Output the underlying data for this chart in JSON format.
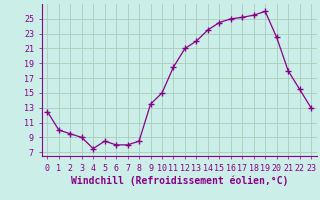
{
  "x": [
    0,
    1,
    2,
    3,
    4,
    5,
    6,
    7,
    8,
    9,
    10,
    11,
    12,
    13,
    14,
    15,
    16,
    17,
    18,
    19,
    20,
    21,
    22,
    23
  ],
  "y": [
    12.5,
    10.0,
    9.5,
    9.0,
    7.5,
    8.5,
    8.0,
    8.0,
    8.5,
    13.5,
    15.0,
    18.5,
    21.0,
    22.0,
    23.5,
    24.5,
    25.0,
    25.2,
    25.5,
    26.0,
    22.5,
    18.0,
    15.5,
    13.0
  ],
  "line_color": "#880088",
  "marker": "+",
  "marker_size": 4,
  "marker_linewidth": 1.0,
  "background_color": "#cceee8",
  "grid_color": "#aaccbb",
  "xlabel": "Windchill (Refroidissement éolien,°C)",
  "xlabel_fontsize": 7,
  "tick_color": "#880088",
  "tick_fontsize": 6,
  "xlim": [
    -0.5,
    23.5
  ],
  "ylim": [
    6.5,
    27.0
  ],
  "yticks": [
    7,
    9,
    11,
    13,
    15,
    17,
    19,
    21,
    23,
    25
  ],
  "xticks": [
    0,
    1,
    2,
    3,
    4,
    5,
    6,
    7,
    8,
    9,
    10,
    11,
    12,
    13,
    14,
    15,
    16,
    17,
    18,
    19,
    20,
    21,
    22,
    23
  ]
}
